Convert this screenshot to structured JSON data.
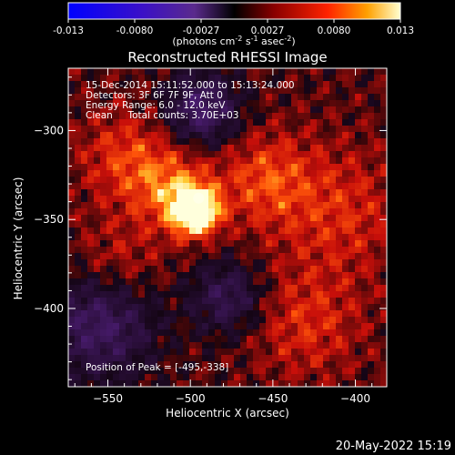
{
  "colorbar": {
    "ticks": [
      "-0.013",
      "-0.0080",
      "-0.0027",
      "0.0027",
      "0.0080",
      "0.013"
    ],
    "unit_prefix": "(photons cm",
    "unit_exp1": "-2",
    "unit_mid": " s",
    "unit_exp2": "-1",
    "unit_mid2": " asec",
    "unit_exp3": "-2",
    "unit_suffix": ")"
  },
  "chart_data": {
    "type": "heatmap",
    "title": "Reconstructed RHESSI Image",
    "xlabel": "Heliocentric X (arcsec)",
    "ylabel": "Heliocentric Y (arcsec)",
    "xlim": [
      -574,
      -381
    ],
    "ylim": [
      -444,
      -265
    ],
    "x_ticks": [
      -550,
      -500,
      -450,
      -400
    ],
    "y_ticks": [
      -300,
      -350,
      -400
    ],
    "color_range": [
      -0.013,
      0.013
    ],
    "peak": [
      -495,
      -338
    ],
    "info_lines": [
      "15-Dec-2014 15:11:52.000 to 15:13:24.000",
      "Detectors: 3F 6F 7F 9F, Att 0",
      "Energy Range: 6.0 - 12.0 keV",
      "Clean     Total counts: 3.70E+03"
    ],
    "peak_label": "Position of Peak = [-495,-338]"
  },
  "footer": {
    "date": "20-May-2022 15:19"
  },
  "colors": {
    "background": "#000000",
    "axis": "#ffffff",
    "negative": "#5a2a8c",
    "positive_low": "#c81e00",
    "positive_high": "#ffffe0"
  }
}
